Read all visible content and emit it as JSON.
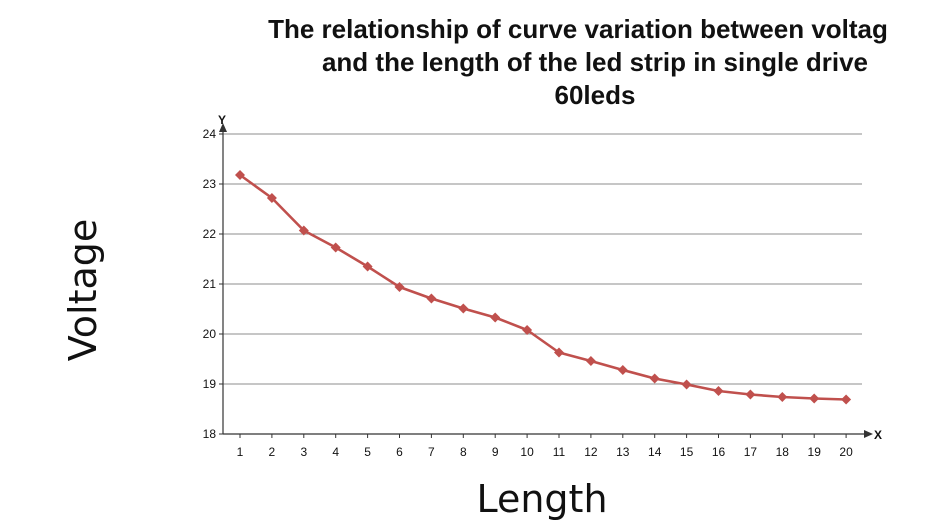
{
  "chart_data": {
    "type": "line",
    "title_lines": [
      "The relationship of curve variation between voltag",
      "and the length of the led strip in single drive",
      "60leds"
    ],
    "xlabel": "Length",
    "ylabel": "Voltage",
    "x_axis_letter": "X",
    "y_axis_letter": "Y",
    "categories": [
      "1",
      "2",
      "3",
      "4",
      "5",
      "6",
      "7",
      "8",
      "9",
      "10",
      "11",
      "12",
      "13",
      "14",
      "15",
      "16",
      "17",
      "18",
      "19",
      "20"
    ],
    "yticks": [
      "18",
      "19",
      "20",
      "21",
      "22",
      "23",
      "24"
    ],
    "ylim": [
      18,
      24
    ],
    "grid": true,
    "series": [
      {
        "name": "Voltage",
        "color": "#c0504d",
        "values": [
          23.18,
          22.72,
          22.07,
          21.73,
          21.35,
          20.94,
          20.71,
          20.51,
          20.33,
          20.08,
          19.63,
          19.46,
          19.28,
          19.11,
          18.99,
          18.86,
          18.79,
          18.74,
          18.71,
          18.69
        ]
      }
    ]
  }
}
